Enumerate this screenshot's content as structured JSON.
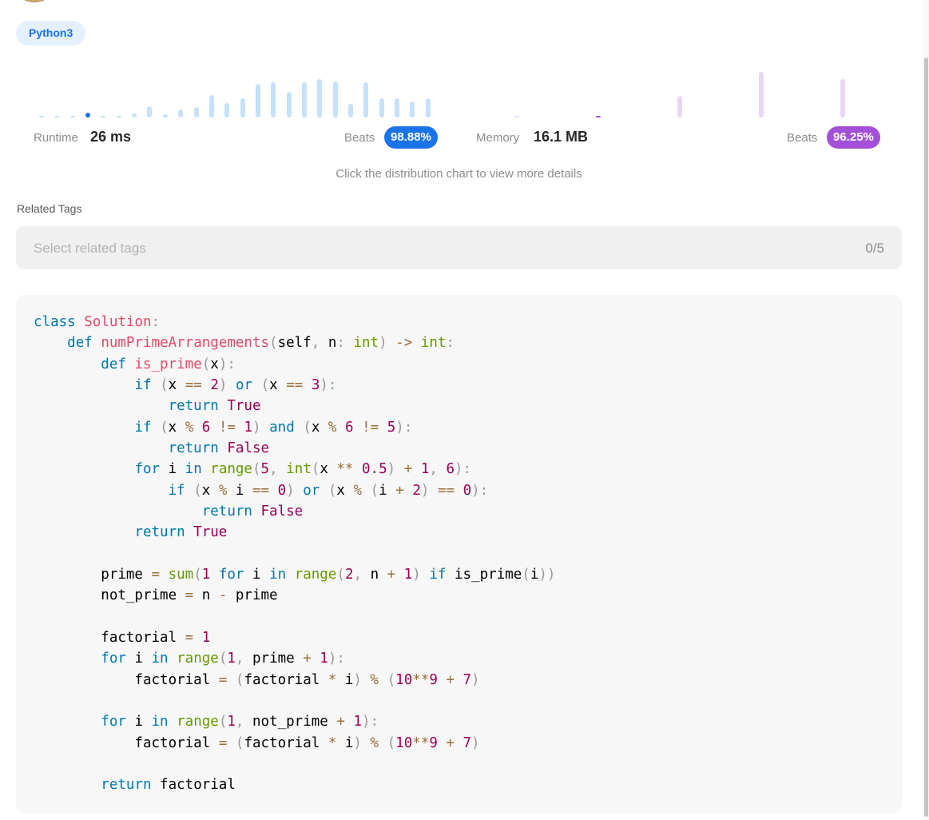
{
  "language": {
    "label": "Python3"
  },
  "runtime": {
    "label": "Runtime",
    "value": "26 ms",
    "beats_label": "Beats",
    "beats_value": "98.88%"
  },
  "memory": {
    "label": "Memory",
    "value": "16.1 MB",
    "beats_label": "Beats",
    "beats_value": "96.25%"
  },
  "distribution": {
    "runtime_bars": [
      2,
      2,
      2,
      6,
      2,
      2,
      5,
      14,
      4,
      10,
      13,
      28,
      18,
      24,
      42,
      44,
      32,
      44,
      48,
      45,
      17,
      44,
      24,
      24,
      20,
      24
    ],
    "runtime_active_index": 3,
    "memory_bars": [
      2,
      2,
      27,
      57,
      48
    ],
    "memory_active_index": 1,
    "colors": {
      "runtime": "#c5e1fb",
      "runtime_active": "#1a73e8",
      "memory": "#e8d6f7",
      "memory_active": "#a34fd8"
    }
  },
  "hint": "Click the distribution chart to view more details",
  "related_tags": {
    "label": "Related Tags",
    "placeholder": "Select related tags",
    "count": "0/5"
  },
  "code": {
    "language": "python",
    "lines": [
      "class Solution:",
      "    def numPrimeArrangements(self, n: int) -> int:",
      "        def is_prime(x):",
      "            if (x == 2) or (x == 3):",
      "                return True",
      "            if (x % 6 != 1) and (x % 6 != 5):",
      "                return False",
      "            for i in range(5, int(x ** 0.5) + 1, 6):",
      "                if (x % i == 0) or (x % (i + 2) == 0):",
      "                    return False",
      "            return True",
      "",
      "        prime = sum(1 for i in range(2, n + 1) if is_prime(i))",
      "        not_prime = n - prime",
      "",
      "        factorial = 1",
      "        for i in range(1, prime + 1):",
      "            factorial = (factorial * i) % (10**9 + 7)",
      "",
      "        for i in range(1, not_prime + 1):",
      "            factorial = (factorial * i) % (10**9 + 7)",
      "",
      "        return factorial"
    ]
  }
}
